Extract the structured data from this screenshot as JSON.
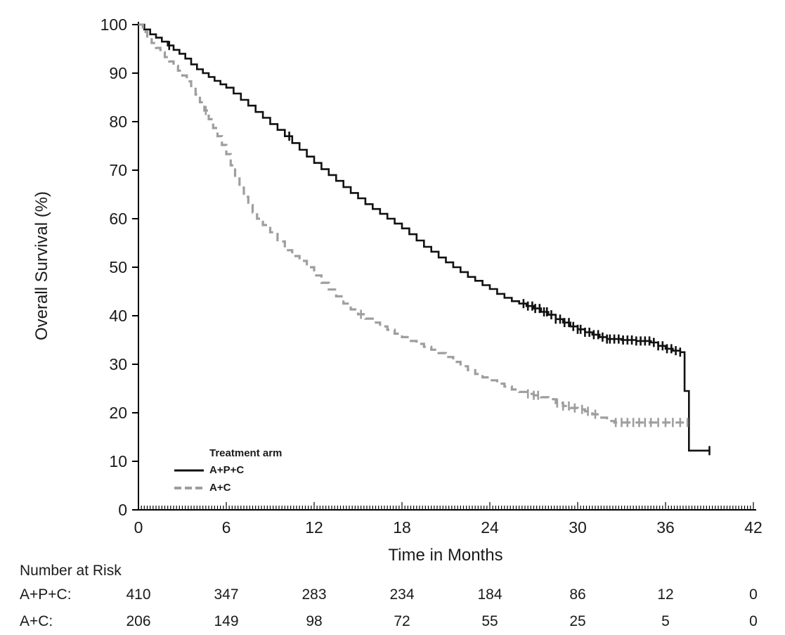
{
  "chart_data": {
    "type": "line",
    "subtype": "kaplan-meier-step",
    "title": "",
    "xlabel": "Time in Months",
    "ylabel": "Overall Survival (%)",
    "xlim": [
      0,
      42
    ],
    "ylim": [
      0,
      100
    ],
    "xticks": [
      0,
      6,
      12,
      18,
      24,
      30,
      36,
      42
    ],
    "yticks": [
      0,
      10,
      20,
      30,
      40,
      50,
      60,
      70,
      80,
      90,
      100
    ],
    "grid": false,
    "legend": {
      "title": "Treatment arm",
      "position": "bottom-left-inside",
      "entries": [
        {
          "label": "A+P+C",
          "color": "#111111",
          "dash": "solid"
        },
        {
          "label": "A+C",
          "color": "#9e9e9e",
          "dash": "dashed"
        }
      ]
    },
    "series": [
      {
        "name": "A+P+C",
        "color": "#111111",
        "dash": "solid",
        "step_points": [
          [
            0,
            100
          ],
          [
            0.4,
            99
          ],
          [
            0.8,
            98
          ],
          [
            1.2,
            97.3
          ],
          [
            1.6,
            96.5
          ],
          [
            2,
            95.7
          ],
          [
            2.4,
            94.8
          ],
          [
            2.8,
            94
          ],
          [
            3.2,
            93
          ],
          [
            3.6,
            91.8
          ],
          [
            4,
            90.8
          ],
          [
            4.4,
            90
          ],
          [
            4.8,
            89.2
          ],
          [
            5.2,
            88.4
          ],
          [
            5.6,
            87.7
          ],
          [
            6,
            87
          ],
          [
            6.5,
            85.8
          ],
          [
            7,
            84.5
          ],
          [
            7.5,
            83.3
          ],
          [
            8,
            82
          ],
          [
            8.5,
            80.8
          ],
          [
            9,
            79.5
          ],
          [
            9.5,
            78.3
          ],
          [
            10,
            77
          ],
          [
            10.5,
            75.6
          ],
          [
            11,
            74.2
          ],
          [
            11.5,
            72.8
          ],
          [
            12,
            71.5
          ],
          [
            12.5,
            70.2
          ],
          [
            13,
            69
          ],
          [
            13.5,
            67.8
          ],
          [
            14,
            66.5
          ],
          [
            14.5,
            65.3
          ],
          [
            15,
            64.2
          ],
          [
            15.5,
            63
          ],
          [
            16,
            62
          ],
          [
            16.5,
            61
          ],
          [
            17,
            60
          ],
          [
            17.5,
            59
          ],
          [
            18,
            58
          ],
          [
            18.5,
            56.8
          ],
          [
            19,
            55.5
          ],
          [
            19.5,
            54.2
          ],
          [
            20,
            53.2
          ],
          [
            20.5,
            52
          ],
          [
            21,
            51
          ],
          [
            21.5,
            50
          ],
          [
            22,
            49
          ],
          [
            22.5,
            48
          ],
          [
            23,
            47.2
          ],
          [
            23.5,
            46.3
          ],
          [
            24,
            45.5
          ],
          [
            24.5,
            44.5
          ],
          [
            25,
            43.7
          ],
          [
            25.5,
            43
          ],
          [
            26,
            42.5
          ],
          [
            26.5,
            42
          ],
          [
            27,
            41.5
          ],
          [
            27.5,
            40.8
          ],
          [
            28,
            40.2
          ],
          [
            28.5,
            39.3
          ],
          [
            29,
            38.6
          ],
          [
            29.5,
            37.8
          ],
          [
            30,
            37.2
          ],
          [
            30.5,
            36.6
          ],
          [
            31,
            36.1
          ],
          [
            31.5,
            35.6
          ],
          [
            32,
            35.2
          ],
          [
            33,
            35
          ],
          [
            34,
            34.8
          ],
          [
            35,
            34.5
          ],
          [
            35.5,
            33.8
          ],
          [
            36,
            33.2
          ],
          [
            36.5,
            32.8
          ],
          [
            37,
            32.5
          ],
          [
            37.3,
            24.5
          ],
          [
            37.6,
            12.2
          ],
          [
            39,
            12.2
          ]
        ],
        "censor_times": [
          2.1,
          10.3,
          26.3,
          26.6,
          26.9,
          27.1,
          27.4,
          27.7,
          27.9,
          28.2,
          28.5,
          28.8,
          29.1,
          29.4,
          29.7,
          30.0,
          30.2,
          30.5,
          30.8,
          31.1,
          31.4,
          31.7,
          32.0,
          32.2,
          32.5,
          32.8,
          33.1,
          33.4,
          33.7,
          34.0,
          34.3,
          34.6,
          34.9,
          35.2,
          35.5,
          35.8,
          36.1,
          36.4,
          36.7,
          37.0,
          39.0
        ]
      },
      {
        "name": "A+C",
        "color": "#9e9e9e",
        "dash": "dashed",
        "step_points": [
          [
            0,
            100
          ],
          [
            0.3,
            98.5
          ],
          [
            0.6,
            97.3
          ],
          [
            0.9,
            96.2
          ],
          [
            1.2,
            95.2
          ],
          [
            1.5,
            94.3
          ],
          [
            1.8,
            93.3
          ],
          [
            2.1,
            92.4
          ],
          [
            2.4,
            91.5
          ],
          [
            2.7,
            90.5
          ],
          [
            3,
            89.5
          ],
          [
            3.3,
            88.3
          ],
          [
            3.6,
            87
          ],
          [
            3.9,
            85.6
          ],
          [
            4.2,
            84
          ],
          [
            4.5,
            82.3
          ],
          [
            4.8,
            80.5
          ],
          [
            5.1,
            78.7
          ],
          [
            5.4,
            77
          ],
          [
            5.7,
            75.2
          ],
          [
            6,
            73.3
          ],
          [
            6.3,
            71
          ],
          [
            6.6,
            68.6
          ],
          [
            6.9,
            66.4
          ],
          [
            7.2,
            64.5
          ],
          [
            7.5,
            62.8
          ],
          [
            7.8,
            61.3
          ],
          [
            8.1,
            60
          ],
          [
            8.5,
            58.7
          ],
          [
            9,
            57.2
          ],
          [
            9.5,
            55.3
          ],
          [
            10,
            53.5
          ],
          [
            10.5,
            52.3
          ],
          [
            11,
            51.3
          ],
          [
            11.5,
            50
          ],
          [
            12,
            48.3
          ],
          [
            12.5,
            46.8
          ],
          [
            13,
            45.4
          ],
          [
            13.5,
            44
          ],
          [
            14,
            42.5
          ],
          [
            14.5,
            41.3
          ],
          [
            15,
            40.3
          ],
          [
            15.5,
            39.4
          ],
          [
            16,
            38.6
          ],
          [
            16.5,
            37.8
          ],
          [
            17,
            37.1
          ],
          [
            17.5,
            36.3
          ],
          [
            18,
            35.6
          ],
          [
            18.5,
            34.8
          ],
          [
            19,
            34.2
          ],
          [
            19.5,
            33.6
          ],
          [
            20,
            33
          ],
          [
            20.5,
            32.3
          ],
          [
            21,
            31.5
          ],
          [
            21.5,
            30.5
          ],
          [
            22,
            29.6
          ],
          [
            22.5,
            28.8
          ],
          [
            23,
            28
          ],
          [
            23.5,
            27.3
          ],
          [
            24,
            26.7
          ],
          [
            24.5,
            26
          ],
          [
            25,
            25.4
          ],
          [
            25.5,
            24.8
          ],
          [
            26,
            24.3
          ],
          [
            26.5,
            23.9
          ],
          [
            27,
            23.6
          ],
          [
            27.5,
            23.2
          ],
          [
            28,
            22.8
          ],
          [
            28.5,
            22
          ],
          [
            29,
            21.4
          ],
          [
            29.5,
            21
          ],
          [
            30,
            20.7
          ],
          [
            30.5,
            20.3
          ],
          [
            31,
            19.7
          ],
          [
            31.5,
            19
          ],
          [
            32,
            18.3
          ],
          [
            32.5,
            18
          ],
          [
            37.6,
            18
          ]
        ],
        "censor_times": [
          4.6,
          15.2,
          26.6,
          27.0,
          27.3,
          28.6,
          29.0,
          29.4,
          29.8,
          30.3,
          30.7,
          31.2,
          32.6,
          33.0,
          33.4,
          33.8,
          34.2,
          34.6,
          35.0,
          35.5,
          36.0,
          36.5,
          37.0,
          37.5
        ]
      }
    ]
  },
  "risk_table": {
    "title": "Number at Risk",
    "times": [
      0,
      6,
      12,
      18,
      24,
      30,
      36,
      42
    ],
    "rows": [
      {
        "label": "A+P+C:",
        "values": [
          "410",
          "347",
          "283",
          "234",
          "184",
          "86",
          "12",
          "0"
        ]
      },
      {
        "label": "A+C:",
        "values": [
          "206",
          "149",
          "98",
          "72",
          "55",
          "25",
          "5",
          "0"
        ]
      }
    ]
  }
}
